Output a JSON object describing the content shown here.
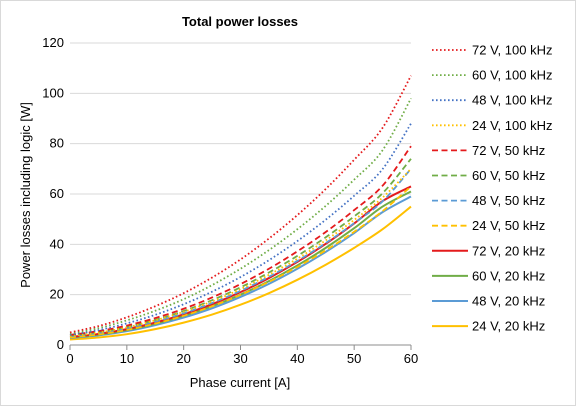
{
  "chart_data": {
    "type": "line",
    "title": "Total power losses",
    "xlabel": "Phase current [A]",
    "ylabel": "Power losses including logic [W]",
    "xlim": [
      0,
      60
    ],
    "ylim": [
      0,
      120
    ],
    "xticks": [
      0,
      10,
      20,
      30,
      40,
      50,
      60
    ],
    "yticks": [
      0,
      20,
      40,
      60,
      80,
      100,
      120
    ],
    "grid": "horizontal",
    "legend_position": "right",
    "x": [
      0,
      5,
      10,
      15,
      20,
      25,
      30,
      35,
      40,
      45,
      50,
      55,
      60
    ],
    "series": [
      {
        "name": "72 V, 100 kHz",
        "color": "#e41a1c",
        "style": "dotted",
        "values": [
          5,
          7.5,
          11,
          15.4,
          20.6,
          26.8,
          34,
          42.3,
          51.6,
          62,
          73.6,
          86.3,
          107
        ]
      },
      {
        "name": "60 V, 100 kHz",
        "color": "#70ad47",
        "style": "dotted",
        "values": [
          4.5,
          6.7,
          9.8,
          13.6,
          18.2,
          23.8,
          30.3,
          37.7,
          46,
          55.3,
          65.7,
          77.4,
          98
        ]
      },
      {
        "name": "48 V, 100 kHz",
        "color": "#4472c4",
        "style": "dotted",
        "values": [
          4,
          5.9,
          8.6,
          12,
          16.2,
          21.2,
          27,
          33.7,
          41.3,
          49.8,
          59.3,
          69.9,
          88
        ]
      },
      {
        "name": "24 V, 100 kHz",
        "color": "#ffc000",
        "style": "dotted",
        "values": [
          3.5,
          4.9,
          7,
          9.8,
          13.2,
          17.3,
          22.2,
          27.9,
          34.3,
          41.6,
          49.7,
          58.6,
          70
        ]
      },
      {
        "name": "72 V, 50 kHz",
        "color": "#e41a1c",
        "style": "dashed",
        "values": [
          4,
          5.5,
          7.7,
          10.7,
          14.4,
          18.9,
          24.2,
          30.3,
          37.2,
          44.9,
          53.6,
          63.3,
          79
        ]
      },
      {
        "name": "60 V, 50 kHz",
        "color": "#70ad47",
        "style": "dashed",
        "values": [
          3.8,
          5.2,
          7.2,
          10,
          13.5,
          17.8,
          22.9,
          28.8,
          35.4,
          42.8,
          51.1,
          60.3,
          74
        ]
      },
      {
        "name": "48 V, 50 kHz",
        "color": "#5b9bd5",
        "style": "dashed",
        "values": [
          3.5,
          4.8,
          6.7,
          9.3,
          12.6,
          16.7,
          21.5,
          27.1,
          33.4,
          40.5,
          48.4,
          57.1,
          70
        ]
      },
      {
        "name": "24 V, 50 kHz",
        "color": "#ffc000",
        "style": "dashed",
        "values": [
          3,
          4.2,
          6,
          8.5,
          11.6,
          15.4,
          19.9,
          25.1,
          31,
          37.6,
          45,
          53.2,
          63
        ]
      },
      {
        "name": "72 V, 20 kHz",
        "color": "#e41a1c",
        "style": "solid",
        "values": [
          3.2,
          4.4,
          6.3,
          8.9,
          12.2,
          16.2,
          21,
          26.6,
          33,
          40.2,
          48.3,
          57.2,
          63
        ]
      },
      {
        "name": "60 V, 20 kHz",
        "color": "#70ad47",
        "style": "solid",
        "values": [
          3,
          4.1,
          5.9,
          8.4,
          11.6,
          15.4,
          20,
          25.4,
          31.6,
          38.6,
          46.4,
          55,
          61
        ]
      },
      {
        "name": "48 V, 20 kHz",
        "color": "#5b9bd5",
        "style": "solid",
        "values": [
          2.8,
          3.8,
          5.5,
          7.9,
          10.9,
          14.6,
          19.1,
          24.3,
          30.3,
          37,
          44.5,
          52.8,
          59
        ]
      },
      {
        "name": "24 V, 20 kHz",
        "color": "#ffc000",
        "style": "solid",
        "values": [
          2.2,
          3,
          4.3,
          6.3,
          8.9,
          12.1,
          16,
          20.6,
          25.9,
          31.9,
          38.6,
          46,
          55
        ]
      }
    ]
  }
}
